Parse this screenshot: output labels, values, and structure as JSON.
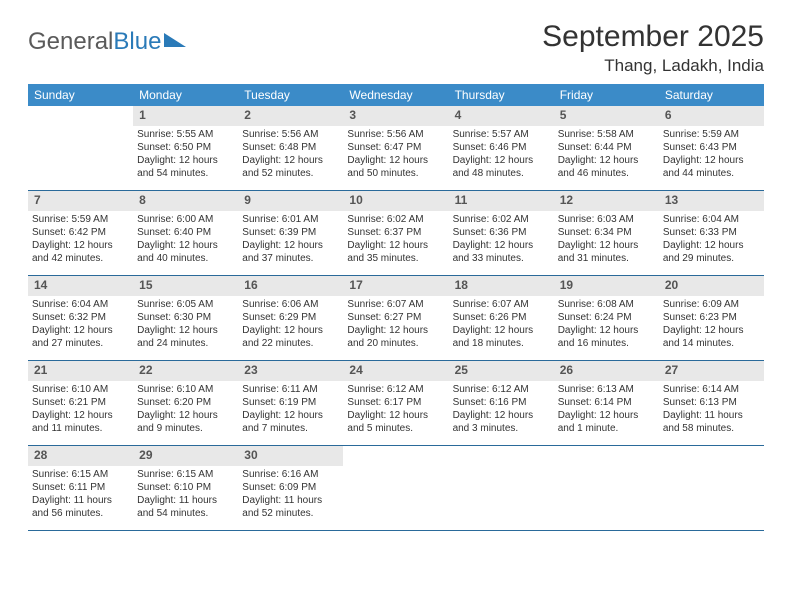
{
  "brand": {
    "part1": "General",
    "part2": "Blue"
  },
  "title": "September 2025",
  "location": "Thang, Ladakh, India",
  "header_bg": "#3b8bc8",
  "daynum_bg": "#e8e8e8",
  "border_color": "#2a6a9a",
  "weekdays": [
    "Sunday",
    "Monday",
    "Tuesday",
    "Wednesday",
    "Thursday",
    "Friday",
    "Saturday"
  ],
  "weeks": [
    [
      null,
      {
        "n": "1",
        "sr": "Sunrise: 5:55 AM",
        "ss": "Sunset: 6:50 PM",
        "dl": "Daylight: 12 hours and 54 minutes."
      },
      {
        "n": "2",
        "sr": "Sunrise: 5:56 AM",
        "ss": "Sunset: 6:48 PM",
        "dl": "Daylight: 12 hours and 52 minutes."
      },
      {
        "n": "3",
        "sr": "Sunrise: 5:56 AM",
        "ss": "Sunset: 6:47 PM",
        "dl": "Daylight: 12 hours and 50 minutes."
      },
      {
        "n": "4",
        "sr": "Sunrise: 5:57 AM",
        "ss": "Sunset: 6:46 PM",
        "dl": "Daylight: 12 hours and 48 minutes."
      },
      {
        "n": "5",
        "sr": "Sunrise: 5:58 AM",
        "ss": "Sunset: 6:44 PM",
        "dl": "Daylight: 12 hours and 46 minutes."
      },
      {
        "n": "6",
        "sr": "Sunrise: 5:59 AM",
        "ss": "Sunset: 6:43 PM",
        "dl": "Daylight: 12 hours and 44 minutes."
      }
    ],
    [
      {
        "n": "7",
        "sr": "Sunrise: 5:59 AM",
        "ss": "Sunset: 6:42 PM",
        "dl": "Daylight: 12 hours and 42 minutes."
      },
      {
        "n": "8",
        "sr": "Sunrise: 6:00 AM",
        "ss": "Sunset: 6:40 PM",
        "dl": "Daylight: 12 hours and 40 minutes."
      },
      {
        "n": "9",
        "sr": "Sunrise: 6:01 AM",
        "ss": "Sunset: 6:39 PM",
        "dl": "Daylight: 12 hours and 37 minutes."
      },
      {
        "n": "10",
        "sr": "Sunrise: 6:02 AM",
        "ss": "Sunset: 6:37 PM",
        "dl": "Daylight: 12 hours and 35 minutes."
      },
      {
        "n": "11",
        "sr": "Sunrise: 6:02 AM",
        "ss": "Sunset: 6:36 PM",
        "dl": "Daylight: 12 hours and 33 minutes."
      },
      {
        "n": "12",
        "sr": "Sunrise: 6:03 AM",
        "ss": "Sunset: 6:34 PM",
        "dl": "Daylight: 12 hours and 31 minutes."
      },
      {
        "n": "13",
        "sr": "Sunrise: 6:04 AM",
        "ss": "Sunset: 6:33 PM",
        "dl": "Daylight: 12 hours and 29 minutes."
      }
    ],
    [
      {
        "n": "14",
        "sr": "Sunrise: 6:04 AM",
        "ss": "Sunset: 6:32 PM",
        "dl": "Daylight: 12 hours and 27 minutes."
      },
      {
        "n": "15",
        "sr": "Sunrise: 6:05 AM",
        "ss": "Sunset: 6:30 PM",
        "dl": "Daylight: 12 hours and 24 minutes."
      },
      {
        "n": "16",
        "sr": "Sunrise: 6:06 AM",
        "ss": "Sunset: 6:29 PM",
        "dl": "Daylight: 12 hours and 22 minutes."
      },
      {
        "n": "17",
        "sr": "Sunrise: 6:07 AM",
        "ss": "Sunset: 6:27 PM",
        "dl": "Daylight: 12 hours and 20 minutes."
      },
      {
        "n": "18",
        "sr": "Sunrise: 6:07 AM",
        "ss": "Sunset: 6:26 PM",
        "dl": "Daylight: 12 hours and 18 minutes."
      },
      {
        "n": "19",
        "sr": "Sunrise: 6:08 AM",
        "ss": "Sunset: 6:24 PM",
        "dl": "Daylight: 12 hours and 16 minutes."
      },
      {
        "n": "20",
        "sr": "Sunrise: 6:09 AM",
        "ss": "Sunset: 6:23 PM",
        "dl": "Daylight: 12 hours and 14 minutes."
      }
    ],
    [
      {
        "n": "21",
        "sr": "Sunrise: 6:10 AM",
        "ss": "Sunset: 6:21 PM",
        "dl": "Daylight: 12 hours and 11 minutes."
      },
      {
        "n": "22",
        "sr": "Sunrise: 6:10 AM",
        "ss": "Sunset: 6:20 PM",
        "dl": "Daylight: 12 hours and 9 minutes."
      },
      {
        "n": "23",
        "sr": "Sunrise: 6:11 AM",
        "ss": "Sunset: 6:19 PM",
        "dl": "Daylight: 12 hours and 7 minutes."
      },
      {
        "n": "24",
        "sr": "Sunrise: 6:12 AM",
        "ss": "Sunset: 6:17 PM",
        "dl": "Daylight: 12 hours and 5 minutes."
      },
      {
        "n": "25",
        "sr": "Sunrise: 6:12 AM",
        "ss": "Sunset: 6:16 PM",
        "dl": "Daylight: 12 hours and 3 minutes."
      },
      {
        "n": "26",
        "sr": "Sunrise: 6:13 AM",
        "ss": "Sunset: 6:14 PM",
        "dl": "Daylight: 12 hours and 1 minute."
      },
      {
        "n": "27",
        "sr": "Sunrise: 6:14 AM",
        "ss": "Sunset: 6:13 PM",
        "dl": "Daylight: 11 hours and 58 minutes."
      }
    ],
    [
      {
        "n": "28",
        "sr": "Sunrise: 6:15 AM",
        "ss": "Sunset: 6:11 PM",
        "dl": "Daylight: 11 hours and 56 minutes."
      },
      {
        "n": "29",
        "sr": "Sunrise: 6:15 AM",
        "ss": "Sunset: 6:10 PM",
        "dl": "Daylight: 11 hours and 54 minutes."
      },
      {
        "n": "30",
        "sr": "Sunrise: 6:16 AM",
        "ss": "Sunset: 6:09 PM",
        "dl": "Daylight: 11 hours and 52 minutes."
      },
      null,
      null,
      null,
      null
    ]
  ]
}
